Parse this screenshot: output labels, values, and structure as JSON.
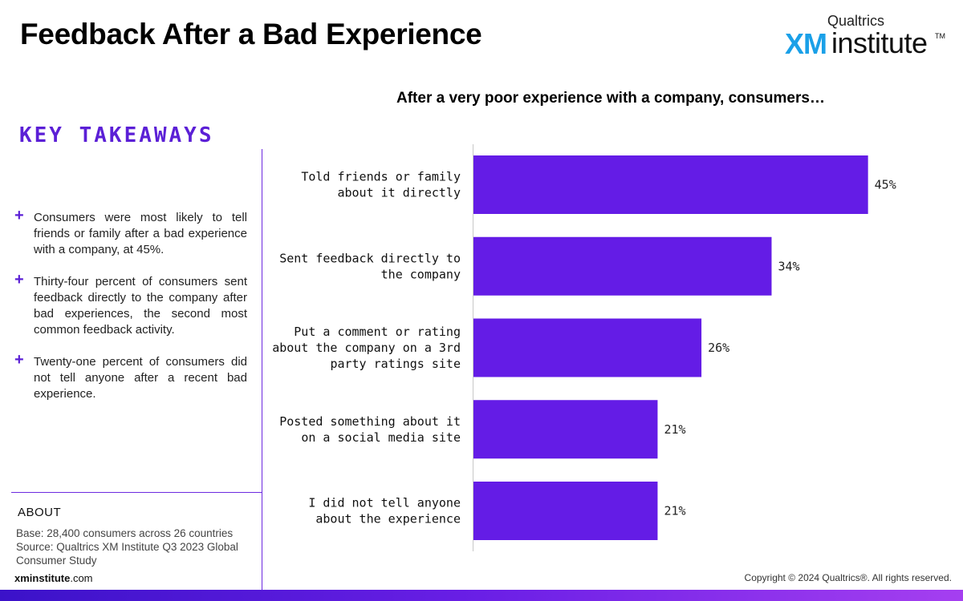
{
  "header": {
    "title": "Feedback After a Bad Experience",
    "logo": {
      "brand": "Qualtrics",
      "xm": "XM",
      "institute": "institute",
      "tm": "TM"
    }
  },
  "sidebar": {
    "heading": "KEY TAKEAWAYS",
    "takeaways": [
      "Consumers were most likely to tell friends or family after a bad experience with a company, at 45%.",
      "Thirty-four percent of consumers sent feedback directly to the company after bad experiences, the second most common feedback activity.",
      "Twenty-one percent of consumers did not tell anyone after a recent bad experience."
    ],
    "plus_symbol": "+",
    "about": {
      "heading": "ABOUT",
      "base": "Base: 28,400 consumers across 26 countries",
      "source": "Source: Qualtrics XM Institute Q3 2023 Global Consumer Study"
    },
    "site": {
      "bold": "xminstitute",
      "rest": ".com"
    }
  },
  "footer": {
    "copyright": "Copyright © 2024 Qualtrics®. All rights reserved."
  },
  "colors": {
    "accent": "#5b1fd6",
    "bar": "#641ce6"
  },
  "chart_data": {
    "type": "bar",
    "orientation": "horizontal",
    "title": "After a very poor experience with a company, consumers…",
    "categories": [
      [
        "Told friends or family",
        "about it directly"
      ],
      [
        "Sent feedback directly to",
        "the company"
      ],
      [
        "Put a comment or rating",
        "about the company on a 3rd",
        "party ratings site"
      ],
      [
        "Posted something about it",
        "on a social media site"
      ],
      [
        "I did not tell anyone",
        "about the experience"
      ]
    ],
    "values": [
      45,
      34,
      26,
      21,
      21
    ],
    "value_suffix": "%",
    "xlim": [
      0,
      54
    ]
  }
}
